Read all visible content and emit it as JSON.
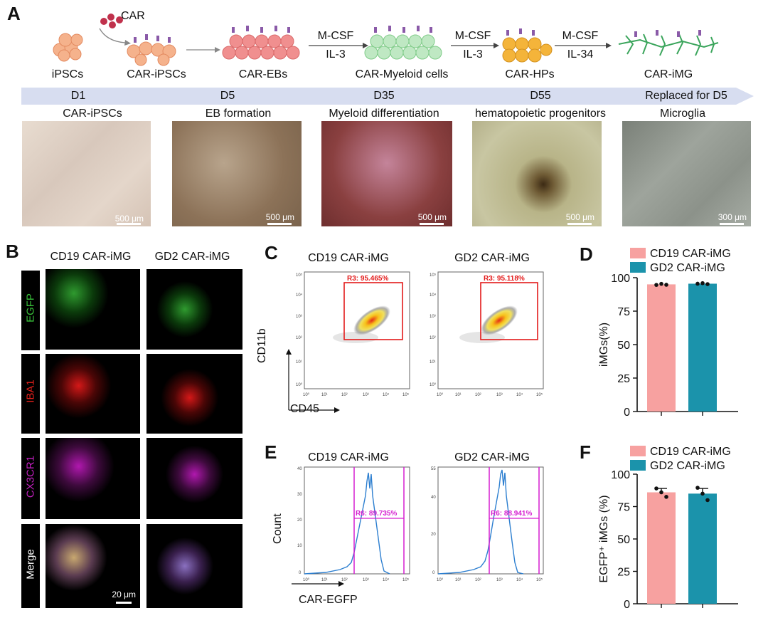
{
  "panels": {
    "A": "A",
    "B": "B",
    "C": "C",
    "D": "D",
    "E": "E",
    "F": "F"
  },
  "pipeline": {
    "car_label": "CAR",
    "stages": [
      "iPSCs",
      "CAR-iPSCs",
      "CAR-EBs",
      "CAR-Myeloid cells",
      "CAR-HPs",
      "CAR-iMG"
    ],
    "arrows": [
      {
        "top": "M-CSF",
        "bottom": "IL-3"
      },
      {
        "top": "M-CSF",
        "bottom": "IL-3"
      },
      {
        "top": "M-CSF",
        "bottom": "IL-34"
      }
    ],
    "timeline": [
      "D1",
      "D5",
      "D35",
      "D55",
      "Replaced for D5"
    ],
    "image_titles": [
      "CAR-iPSCs",
      "EB formation",
      "Myeloid differentiation",
      "hematopoietic progenitors",
      "Microglia"
    ],
    "scale_bars": [
      "500 μm",
      "500 μm",
      "500 μm",
      "500 μm",
      "300 μm"
    ]
  },
  "panelB": {
    "columns": [
      "CD19 CAR-iMG",
      "GD2 CAR-iMG"
    ],
    "rows": [
      "EGFP",
      "IBA1",
      "CX3CR1",
      "Merge"
    ],
    "row_colors": [
      "#39c23a",
      "#e3201b",
      "#c21fbf",
      "#ffffff"
    ],
    "scale_bar": "20 μm"
  },
  "panelC": {
    "titles": [
      "CD19 CAR-iMG",
      "GD2 CAR-iMG"
    ],
    "gates": [
      "R3: 95.465%",
      "R3: 95.118%"
    ],
    "ylabel": "CD11b",
    "xlabel": "CD45",
    "xticks": [
      "10⁰",
      "10¹",
      "10²",
      "10³",
      "10⁴",
      "10⁵"
    ],
    "yticks": [
      "10⁵",
      "10⁴",
      "10³",
      "10²",
      "10¹",
      "10⁰"
    ]
  },
  "panelE": {
    "titles": [
      "CD19 CAR-iMG",
      "GD2 CAR-iMG"
    ],
    "gates": [
      "R6: 89.735%",
      "R6: 88.941%"
    ],
    "ylabel": "Count",
    "xlabel": "CAR-EGFP",
    "left_yticks": [
      "40",
      "30",
      "20",
      "10",
      "0"
    ],
    "right_yticks": [
      "55",
      "40",
      "20",
      "0"
    ],
    "xticks": [
      "10⁰",
      "10¹",
      "10²",
      "10³",
      "10⁴",
      "10⁵"
    ]
  },
  "chart_data": [
    {
      "type": "bar",
      "panel": "D",
      "categories": [
        "CD19 CAR-iMG",
        "GD2 CAR-iMG"
      ],
      "values": [
        95.0,
        95.5
      ],
      "points": [
        [
          94.6,
          95.4,
          94.7
        ],
        [
          95.5,
          95.9,
          95.2
        ]
      ],
      "colors": [
        "#f7a1a0",
        "#1b93ab"
      ],
      "ylabel": "iMGs(%)",
      "ylim": [
        0,
        100
      ],
      "yticks": [
        0,
        25,
        50,
        75,
        100
      ],
      "legend": [
        "CD19 CAR-iMG",
        "GD2 CAR-iMG"
      ]
    },
    {
      "type": "bar",
      "panel": "F",
      "categories": [
        "CD19 CAR-iMG",
        "GD2 CAR-iMG"
      ],
      "values": [
        86.0,
        85.0
      ],
      "errors": [
        3.0,
        4.0
      ],
      "points": [
        [
          89.0,
          86.0,
          82.5
        ],
        [
          89.5,
          85.0,
          80.0
        ]
      ],
      "colors": [
        "#f7a1a0",
        "#1b93ab"
      ],
      "ylabel": "EGFP⁺ iMGs (%)",
      "ylim": [
        0,
        100
      ],
      "yticks": [
        0,
        25,
        50,
        75,
        100
      ],
      "legend": [
        "CD19 CAR-iMG",
        "GD2 CAR-iMG"
      ]
    }
  ]
}
